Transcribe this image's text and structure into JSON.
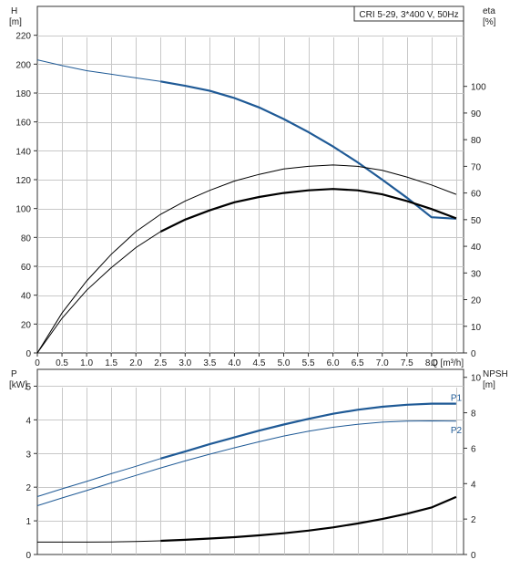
{
  "chart_data": [
    {
      "type": "line",
      "left_axis": {
        "label": "H",
        "unit": "[m]",
        "ylim": [
          0,
          240
        ],
        "ticks": [
          0,
          20,
          40,
          60,
          80,
          100,
          120,
          140,
          160,
          180,
          200,
          220
        ]
      },
      "right_axis": {
        "label": "eta",
        "unit": "[%]",
        "ylim": [
          0,
          130
        ],
        "ticks": [
          0,
          10,
          20,
          30,
          40,
          50,
          60,
          70,
          80,
          90,
          100
        ]
      },
      "x_axis": {
        "label": "Q [m³/h]",
        "xlim": [
          0,
          8.65
        ],
        "ticks": [
          "0",
          "0.5",
          "1.0",
          "1.5",
          "2.0",
          "2.5",
          "3.0",
          "3.5",
          "4.0",
          "4.5",
          "5.0",
          "5.5",
          "6.0",
          "6.5",
          "7.0",
          "7.5",
          "8.0"
        ]
      },
      "title_box": "CRI 5-29, 3*400 V, 50Hz",
      "grid": true,
      "series": [
        {
          "axis": "left",
          "color": "#1f5a96",
          "thin_until": 2.5,
          "points": [
            [
              0,
              203
            ],
            [
              0.5,
              199
            ],
            [
              1.0,
              195.5
            ],
            [
              1.5,
              193
            ],
            [
              2.0,
              190.5
            ],
            [
              2.5,
              188
            ],
            [
              3.0,
              185
            ],
            [
              3.5,
              181.5
            ],
            [
              4.0,
              176.5
            ],
            [
              4.5,
              170
            ],
            [
              5.0,
              162
            ],
            [
              5.5,
              153
            ],
            [
              6.0,
              143
            ],
            [
              6.5,
              132
            ],
            [
              7.0,
              120
            ],
            [
              7.5,
              107.5
            ],
            [
              8.0,
              94
            ],
            [
              8.5,
              93
            ]
          ]
        },
        {
          "axis": "right",
          "color": "#000000",
          "thin_until": 9,
          "points": [
            [
              0,
              0
            ],
            [
              0.5,
              15
            ],
            [
              1.0,
              27
            ],
            [
              1.5,
              37
            ],
            [
              2.0,
              45.5
            ],
            [
              2.5,
              52
            ],
            [
              3.0,
              57
            ],
            [
              3.5,
              61
            ],
            [
              4.0,
              64.5
            ],
            [
              4.5,
              67
            ],
            [
              5.0,
              69
            ],
            [
              5.5,
              70
            ],
            [
              6.0,
              70.5
            ],
            [
              6.5,
              70
            ],
            [
              7.0,
              68.5
            ],
            [
              7.5,
              66
            ],
            [
              8.0,
              63
            ],
            [
              8.5,
              59.5
            ]
          ]
        },
        {
          "axis": "right",
          "color": "#000000",
          "thin_until": 2.5,
          "points": [
            [
              0,
              0
            ],
            [
              0.5,
              13
            ],
            [
              1.0,
              23.5
            ],
            [
              1.5,
              32
            ],
            [
              2.0,
              39.5
            ],
            [
              2.5,
              45.5
            ],
            [
              3.0,
              50
            ],
            [
              3.5,
              53.5
            ],
            [
              4.0,
              56.5
            ],
            [
              4.5,
              58.5
            ],
            [
              5.0,
              60
            ],
            [
              5.5,
              61
            ],
            [
              6.0,
              61.5
            ],
            [
              6.5,
              61
            ],
            [
              7.0,
              59.5
            ],
            [
              7.5,
              57
            ],
            [
              8.0,
              54
            ],
            [
              8.5,
              50.5
            ]
          ]
        }
      ]
    },
    {
      "type": "line",
      "left_axis": {
        "label": "P",
        "unit": "[kW]",
        "ylim": [
          0,
          5.5
        ],
        "ticks": [
          0,
          1,
          2,
          3,
          4,
          5
        ]
      },
      "right_axis": {
        "label": "NPSH",
        "unit": "[m]",
        "ylim": [
          0,
          10.45
        ],
        "ticks": [
          0,
          2,
          4,
          6,
          8,
          10
        ]
      },
      "x_axis": {
        "xlim": [
          0,
          8.65
        ]
      },
      "grid": true,
      "series": [
        {
          "name": "P1",
          "axis": "left",
          "color": "#1f5a96",
          "thin_until": 2.5,
          "points": [
            [
              0,
              1.72
            ],
            [
              0.5,
              1.95
            ],
            [
              1.0,
              2.17
            ],
            [
              1.5,
              2.4
            ],
            [
              2.0,
              2.62
            ],
            [
              2.5,
              2.85
            ],
            [
              3.0,
              3.06
            ],
            [
              3.5,
              3.28
            ],
            [
              4.0,
              3.48
            ],
            [
              4.5,
              3.68
            ],
            [
              5.0,
              3.86
            ],
            [
              5.5,
              4.03
            ],
            [
              6.0,
              4.18
            ],
            [
              6.5,
              4.3
            ],
            [
              7.0,
              4.39
            ],
            [
              7.5,
              4.45
            ],
            [
              8.0,
              4.48
            ],
            [
              8.5,
              4.48
            ]
          ]
        },
        {
          "name": "P2",
          "axis": "left",
          "color": "#1f5a96",
          "thin_until": 9,
          "points": [
            [
              0,
              1.45
            ],
            [
              0.5,
              1.68
            ],
            [
              1.0,
              1.9
            ],
            [
              1.5,
              2.13
            ],
            [
              2.0,
              2.35
            ],
            [
              2.5,
              2.57
            ],
            [
              3.0,
              2.78
            ],
            [
              3.5,
              2.98
            ],
            [
              4.0,
              3.17
            ],
            [
              4.5,
              3.35
            ],
            [
              5.0,
              3.52
            ],
            [
              5.5,
              3.66
            ],
            [
              6.0,
              3.78
            ],
            [
              6.5,
              3.87
            ],
            [
              7.0,
              3.93
            ],
            [
              7.5,
              3.96
            ],
            [
              8.0,
              3.97
            ],
            [
              8.5,
              3.96
            ]
          ]
        },
        {
          "axis": "right",
          "color": "#000000",
          "thin_until": 2.5,
          "points": [
            [
              0,
              0.7
            ],
            [
              0.5,
              0.7
            ],
            [
              1.0,
              0.7
            ],
            [
              1.5,
              0.71
            ],
            [
              2.0,
              0.73
            ],
            [
              2.5,
              0.77
            ],
            [
              3.0,
              0.83
            ],
            [
              3.5,
              0.9
            ],
            [
              4.0,
              0.98
            ],
            [
              4.5,
              1.08
            ],
            [
              5.0,
              1.2
            ],
            [
              5.5,
              1.35
            ],
            [
              6.0,
              1.53
            ],
            [
              6.5,
              1.75
            ],
            [
              7.0,
              2.0
            ],
            [
              7.5,
              2.3
            ],
            [
              8.0,
              2.65
            ],
            [
              8.5,
              3.25
            ]
          ]
        }
      ]
    }
  ]
}
